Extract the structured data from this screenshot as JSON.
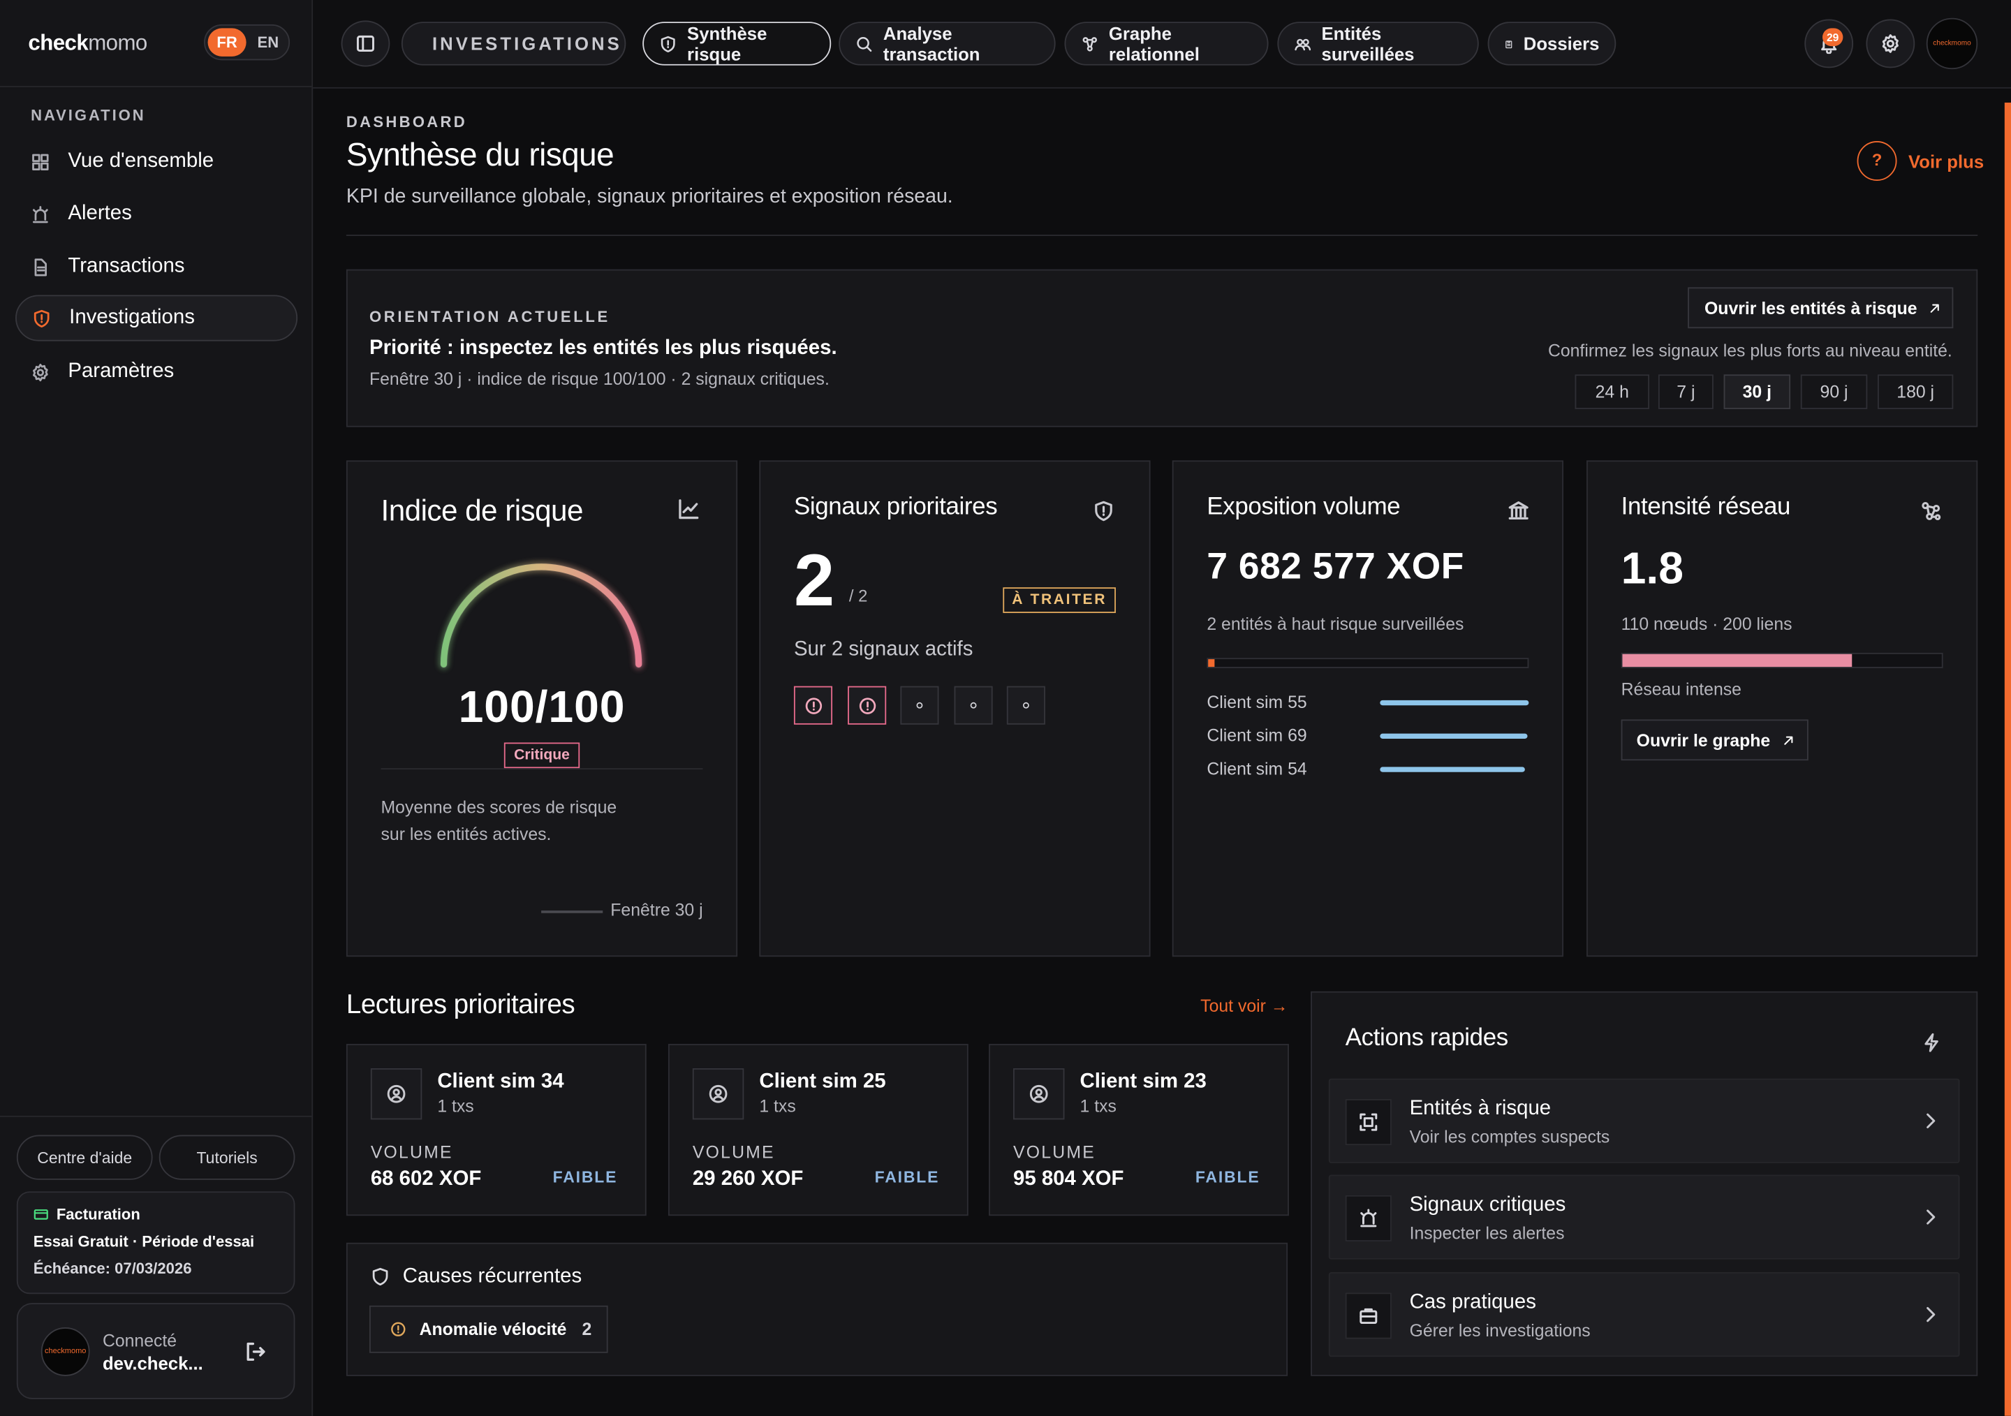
{
  "app": {
    "logo_main": "check",
    "logo_sub": "momo",
    "lang_fr": "FR",
    "lang_en": "EN",
    "avatar_text": "checkmomo"
  },
  "sidebar": {
    "nav_title": "NAVIGATION",
    "items": [
      {
        "label": "Vue d'ensemble",
        "icon": "grid-icon"
      },
      {
        "label": "Alertes",
        "icon": "siren-icon"
      },
      {
        "label": "Transactions",
        "icon": "document-icon"
      },
      {
        "label": "Investigations",
        "icon": "shield-alert-icon"
      },
      {
        "label": "Paramètres",
        "icon": "gear-icon"
      }
    ],
    "help": "Centre d'aide",
    "tutorials": "Tutoriels",
    "billing": {
      "title": "Facturation",
      "plan": "Essai Gratuit · Période d'essai",
      "due": "Échéance: 07/03/2026"
    },
    "user": {
      "status": "Connecté",
      "name": "dev.check..."
    }
  },
  "topbar": {
    "section": "INVESTIGATIONS",
    "tabs": [
      {
        "label": "Synthèse risque",
        "icon": "shield-icon"
      },
      {
        "label": "Analyse transaction",
        "icon": "search-icon"
      },
      {
        "label": "Graphe relationnel",
        "icon": "graph-icon"
      },
      {
        "label": "Entités surveillées",
        "icon": "users-icon"
      },
      {
        "label": "Dossiers",
        "icon": "clipboard-icon"
      }
    ],
    "notifications": "29"
  },
  "header": {
    "eyebrow": "DASHBOARD",
    "title": "Synthèse du risque",
    "subtitle": "KPI de surveillance globale, signaux prioritaires et exposition réseau.",
    "help": "?",
    "more": "Voir plus"
  },
  "orientation": {
    "eyebrow": "ORIENTATION ACTUELLE",
    "title": "Priorité : inspectez les entités les plus risquées.",
    "detail": "Fenêtre 30 j · indice de risque 100/100 · 2 signaux critiques.",
    "open_btn": "Ouvrir les entités à risque",
    "hint": "Confirmez les signaux les plus forts au niveau entité.",
    "ranges": [
      "24 h",
      "7 j",
      "30 j",
      "90 j",
      "180 j"
    ],
    "selected_range": "30 j"
  },
  "kpis": {
    "risk": {
      "title": "Indice de risque",
      "score": "100/100",
      "score_value": 100,
      "level": "Critique",
      "desc1": "Moyenne des scores de risque",
      "desc2": "sur les entités actives.",
      "window": "Fenêtre 30 j"
    },
    "signals": {
      "title": "Signaux prioritaires",
      "value": "2",
      "total": "/ 2",
      "badge": "À TRAITER",
      "sub": "Sur 2 signaux actifs"
    },
    "exposure": {
      "title": "Exposition volume",
      "value": "7 682 577 XOF",
      "sub": "2 entités à haut risque surveillées",
      "progress": 0.02,
      "clients": [
        {
          "name": "Client sim 55",
          "share": 1.0
        },
        {
          "name": "Client sim 69",
          "share": 0.99
        },
        {
          "name": "Client sim 54",
          "share": 0.97
        }
      ]
    },
    "network": {
      "title": "Intensité réseau",
      "value": "1.8",
      "sub": "110 nœuds · 200 liens",
      "progress": 0.72,
      "label": "Réseau intense",
      "btn": "Ouvrir le graphe"
    }
  },
  "readings": {
    "title": "Lectures prioritaires",
    "see_all": "Tout voir →",
    "volume_label": "VOLUME",
    "items": [
      {
        "name": "Client sim 34",
        "txs": "1 txs",
        "volume": "68 602 XOF",
        "level": "FAIBLE"
      },
      {
        "name": "Client sim 25",
        "txs": "1 txs",
        "volume": "29 260 XOF",
        "level": "FAIBLE"
      },
      {
        "name": "Client sim 23",
        "txs": "1 txs",
        "volume": "95 804 XOF",
        "level": "FAIBLE"
      }
    ]
  },
  "causes": {
    "title": "Causes récurrentes",
    "items": [
      {
        "label": "Anomalie vélocité",
        "count": "2"
      }
    ]
  },
  "actions": {
    "title": "Actions rapides",
    "items": [
      {
        "title": "Entités à risque",
        "sub": "Voir les comptes suspects"
      },
      {
        "title": "Signaux critiques",
        "sub": "Inspecter les alertes"
      },
      {
        "title": "Cas pratiques",
        "sub": "Gérer les investigations"
      }
    ]
  },
  "colors": {
    "accent": "#f26a2e",
    "critical": "#e66a8b",
    "low": "#8fb6e0",
    "bar_blue": "#8ec5ea",
    "network_bar": "#e88ea3"
  }
}
